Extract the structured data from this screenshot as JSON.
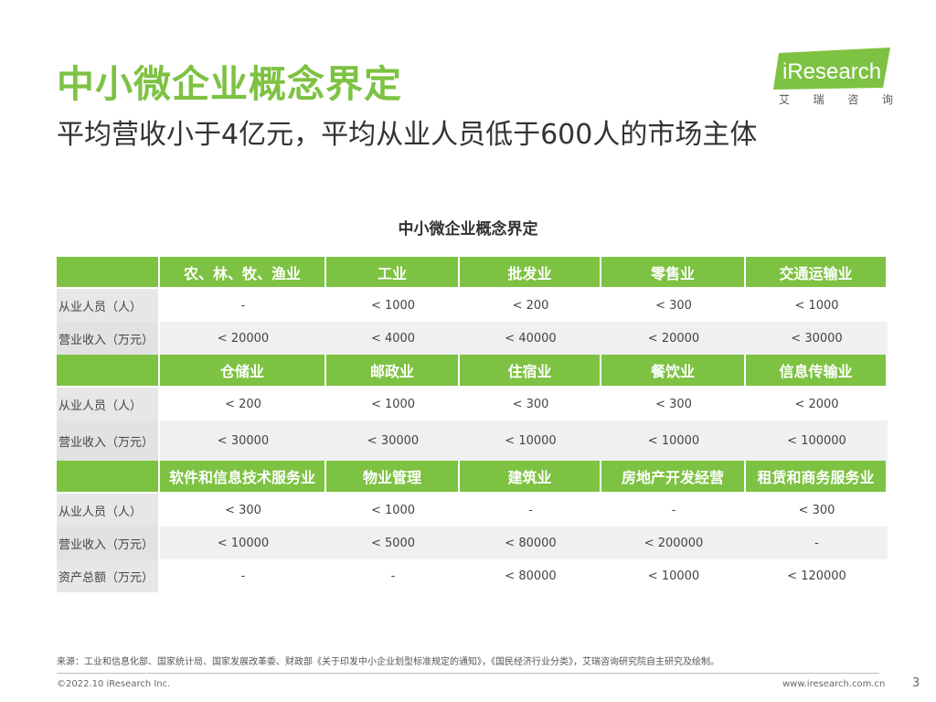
{
  "header": {
    "title": "中小微企业概念界定",
    "subtitle": "平均营收小于4亿元，平均从业人员低于600人的市场主体"
  },
  "logo": {
    "name": "iResearch",
    "chinese_chars": [
      "艾",
      "瑞",
      "咨",
      "询"
    ],
    "brand_color": "#7dc242"
  },
  "table": {
    "title": "中小微企业概念界定",
    "sections": [
      {
        "headers": [
          "",
          "农、林、牧、渔业",
          "工业",
          "批发业",
          "零售业",
          "交通运输业"
        ],
        "rows": [
          {
            "label": "从业人员（人）",
            "cells": [
              "-",
              "< 1000",
              "< 200",
              "< 300",
              "< 1000"
            ]
          },
          {
            "label": "营业收入（万元）",
            "cells": [
              "< 20000",
              "< 4000",
              "< 40000",
              "< 20000",
              "< 30000"
            ]
          }
        ]
      },
      {
        "headers": [
          "",
          "仓储业",
          "邮政业",
          "住宿业",
          "餐饮业",
          "信息传输业"
        ],
        "rows": [
          {
            "label": "从业人员（人）",
            "cells": [
              "< 200",
              "< 1000",
              "< 300",
              "< 300",
              "< 2000"
            ]
          },
          {
            "label": "营业收入（万元）",
            "cells": [
              "< 30000",
              "< 30000",
              "< 10000",
              "< 10000",
              "< 100000"
            ]
          }
        ]
      },
      {
        "headers": [
          "",
          "软件和信息技术服务业",
          "物业管理",
          "建筑业",
          "房地产开发经营",
          "租赁和商务服务业"
        ],
        "rows": [
          {
            "label": "从业人员（人）",
            "cells": [
              "< 300",
              "< 1000",
              "-",
              "-",
              "< 300"
            ]
          },
          {
            "label": "营业收入（万元）",
            "cells": [
              "< 10000",
              "< 5000",
              "< 80000",
              "< 200000",
              "-"
            ]
          },
          {
            "label": "资产总额（万元）",
            "cells": [
              "-",
              "-",
              "< 80000",
              "< 10000",
              "< 120000"
            ]
          }
        ]
      }
    ]
  },
  "footer": {
    "source": "来源：工业和信息化部、国家统计局、国家发展改革委、财政部《关于印发中小企业划型标准规定的通知》，《国民经济行业分类》，艾瑞咨询研究院自主研究及绘制。",
    "copyright": "©2022.10 iResearch Inc.",
    "website": "www.iresearch.com.cn",
    "page_number": "3"
  }
}
